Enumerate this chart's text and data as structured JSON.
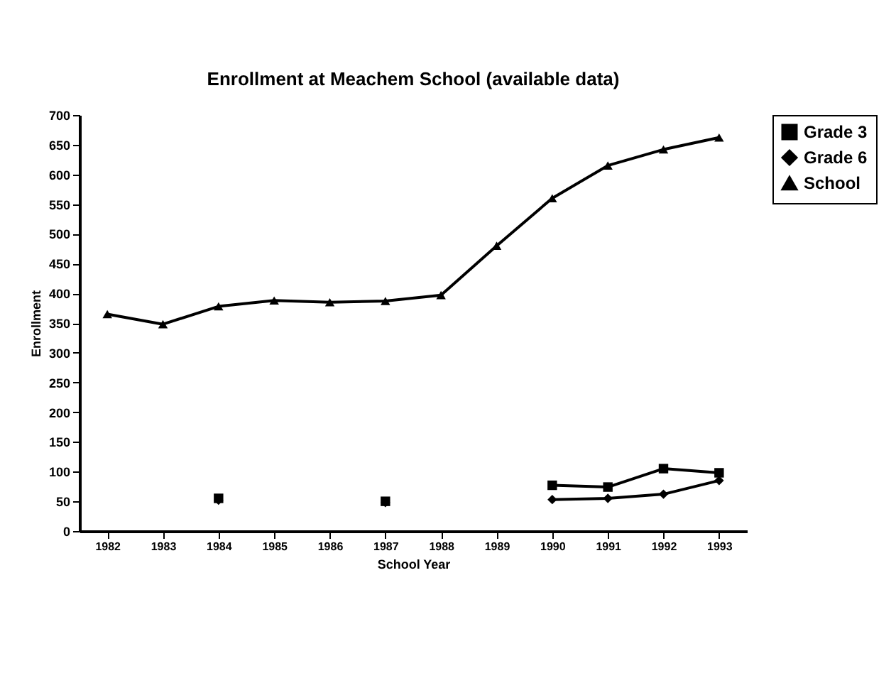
{
  "chart_data": {
    "type": "line",
    "title": "Enrollment at Meachem School (available data)",
    "xlabel": "School Year",
    "ylabel": "Enrollment",
    "categories": [
      "1982",
      "1983",
      "1984",
      "1985",
      "1986",
      "1987",
      "1988",
      "1989",
      "1990",
      "1991",
      "1992",
      "1993"
    ],
    "series": [
      {
        "name": "Grade 3",
        "color": "#000000",
        "marker": "square",
        "values": [
          null,
          null,
          55,
          null,
          null,
          50,
          null,
          null,
          77,
          74,
          105,
          98
        ]
      },
      {
        "name": "Grade 6",
        "color": "#000000",
        "marker": "diamond",
        "values": [
          null,
          null,
          52,
          null,
          null,
          48,
          null,
          null,
          53,
          55,
          62,
          85
        ]
      },
      {
        "name": "School",
        "color": "#000000",
        "marker": "triangle",
        "values": [
          365,
          348,
          378,
          388,
          385,
          387,
          397,
          480,
          560,
          615,
          642,
          662
        ]
      }
    ],
    "ylim": [
      0,
      700
    ],
    "yticks": [
      0,
      50,
      100,
      150,
      200,
      250,
      300,
      350,
      400,
      450,
      500,
      550,
      600,
      650,
      700
    ],
    "grid": false,
    "legend": "right"
  }
}
